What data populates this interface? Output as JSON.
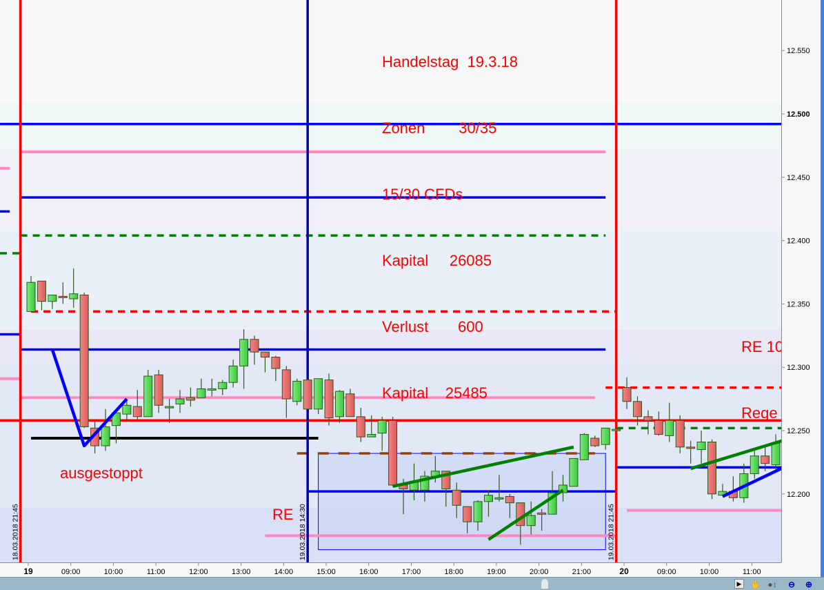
{
  "chart_data": {
    "type": "candlestick",
    "y_axis": {
      "ticks": [
        12550,
        12500,
        12450,
        12400,
        12350,
        12300,
        12250,
        12200
      ],
      "tick_labels": [
        "12.550",
        "12.500",
        "12.450",
        "12.400",
        "12.350",
        "12.300",
        "12.250",
        "12.200"
      ],
      "bold_tick": "12.500"
    },
    "x_axis": {
      "ticks": [
        {
          "t": "19 08:00",
          "label": "19",
          "bold": true
        },
        {
          "t": "19 09:00",
          "label": "09:00"
        },
        {
          "t": "19 10:00",
          "label": "10:00"
        },
        {
          "t": "19 11:00",
          "label": "11:00"
        },
        {
          "t": "19 12:00",
          "label": "12:00"
        },
        {
          "t": "19 13:00",
          "label": "13:00"
        },
        {
          "t": "19 14:00",
          "label": "14:00"
        },
        {
          "t": "19 15:00",
          "label": "15:00"
        },
        {
          "t": "19 16:00",
          "label": "16:00"
        },
        {
          "t": "19 17:00",
          "label": "17:00"
        },
        {
          "t": "19 18:00",
          "label": "18:00"
        },
        {
          "t": "19 19:00",
          "label": "19:00"
        },
        {
          "t": "19 20:00",
          "label": "20:00"
        },
        {
          "t": "19 21:00",
          "label": "21:00"
        },
        {
          "t": "20 08:00",
          "label": "20",
          "bold": true
        },
        {
          "t": "20 09:00",
          "label": "09:00"
        },
        {
          "t": "20 10:00",
          "label": "10:00"
        },
        {
          "t": "20 11:00",
          "label": "11:00"
        }
      ]
    },
    "colors": {
      "up": "#55dd55",
      "down": "#e86868",
      "outline": "#2b5a1c"
    },
    "candles": [
      {
        "t": "19 08:00",
        "o": 12344,
        "h": 12372,
        "l": 12344,
        "c": 12367
      },
      {
        "t": "19 08:15",
        "o": 12368,
        "h": 12368,
        "l": 12345,
        "c": 12352
      },
      {
        "t": "19 08:30",
        "o": 12352,
        "h": 12357,
        "l": 12346,
        "c": 12357
      },
      {
        "t": "19 08:45",
        "o": 12356,
        "h": 12367,
        "l": 12350,
        "c": 12355
      },
      {
        "t": "19 09:00",
        "o": 12354,
        "h": 12378,
        "l": 12347,
        "c": 12358
      },
      {
        "t": "19 09:15",
        "o": 12357,
        "h": 12359,
        "l": 12252,
        "c": 12253
      },
      {
        "t": "19 09:30",
        "o": 12252,
        "h": 12258,
        "l": 12232,
        "c": 12238
      },
      {
        "t": "19 09:45",
        "o": 12238,
        "h": 12267,
        "l": 12234,
        "c": 12253
      },
      {
        "t": "19 10:00",
        "o": 12254,
        "h": 12264,
        "l": 12240,
        "c": 12264
      },
      {
        "t": "19 10:15",
        "o": 12263,
        "h": 12275,
        "l": 12257,
        "c": 12270
      },
      {
        "t": "19 10:30",
        "o": 12269,
        "h": 12282,
        "l": 12259,
        "c": 12261
      },
      {
        "t": "19 10:45",
        "o": 12261,
        "h": 12298,
        "l": 12261,
        "c": 12293
      },
      {
        "t": "19 11:00",
        "o": 12294,
        "h": 12298,
        "l": 12264,
        "c": 12270
      },
      {
        "t": "19 11:15",
        "o": 12269,
        "h": 12275,
        "l": 12256,
        "c": 12269
      },
      {
        "t": "19 11:30",
        "o": 12271,
        "h": 12282,
        "l": 12264,
        "c": 12275
      },
      {
        "t": "19 11:45",
        "o": 12276,
        "h": 12284,
        "l": 12269,
        "c": 12274
      },
      {
        "t": "19 12:00",
        "o": 12276,
        "h": 12291,
        "l": 12276,
        "c": 12283
      },
      {
        "t": "19 12:15",
        "o": 12283,
        "h": 12291,
        "l": 12277,
        "c": 12283
      },
      {
        "t": "19 12:30",
        "o": 12283,
        "h": 12290,
        "l": 12278,
        "c": 12288
      },
      {
        "t": "19 12:45",
        "o": 12288,
        "h": 12306,
        "l": 12284,
        "c": 12301
      },
      {
        "t": "19 13:00",
        "o": 12301,
        "h": 12330,
        "l": 12283,
        "c": 12322
      },
      {
        "t": "19 13:15",
        "o": 12322,
        "h": 12325,
        "l": 12302,
        "c": 12312
      },
      {
        "t": "19 13:30",
        "o": 12312,
        "h": 12312,
        "l": 12296,
        "c": 12308
      },
      {
        "t": "19 13:45",
        "o": 12308,
        "h": 12309,
        "l": 12289,
        "c": 12299
      },
      {
        "t": "19 14:00",
        "o": 12298,
        "h": 12301,
        "l": 12260,
        "c": 12275
      },
      {
        "t": "19 14:15",
        "o": 12273,
        "h": 12291,
        "l": 12270,
        "c": 12289
      },
      {
        "t": "19 14:30",
        "o": 12290,
        "h": 12291,
        "l": 12267,
        "c": 12267
      },
      {
        "t": "19 14:45",
        "o": 12267,
        "h": 12291,
        "l": 12263,
        "c": 12291
      },
      {
        "t": "19 15:00",
        "o": 12290,
        "h": 12295,
        "l": 12254,
        "c": 12260
      },
      {
        "t": "19 15:15",
        "o": 12261,
        "h": 12282,
        "l": 12256,
        "c": 12281
      },
      {
        "t": "19 15:30",
        "o": 12279,
        "h": 12283,
        "l": 12261,
        "c": 12261
      },
      {
        "t": "19 15:45",
        "o": 12261,
        "h": 12268,
        "l": 12241,
        "c": 12245
      },
      {
        "t": "19 16:00",
        "o": 12245,
        "h": 12262,
        "l": 12245,
        "c": 12247
      },
      {
        "t": "19 16:15",
        "o": 12248,
        "h": 12261,
        "l": 12234,
        "c": 12258
      },
      {
        "t": "19 16:30",
        "o": 12258,
        "h": 12261,
        "l": 12206,
        "c": 12207
      },
      {
        "t": "19 16:45",
        "o": 12207,
        "h": 12212,
        "l": 12184,
        "c": 12204
      },
      {
        "t": "19 17:00",
        "o": 12203,
        "h": 12224,
        "l": 12195,
        "c": 12210
      },
      {
        "t": "19 17:15",
        "o": 12203,
        "h": 12218,
        "l": 12194,
        "c": 12214
      },
      {
        "t": "19 17:30",
        "o": 12214,
        "h": 12230,
        "l": 12209,
        "c": 12218
      },
      {
        "t": "19 17:45",
        "o": 12218,
        "h": 12218,
        "l": 12190,
        "c": 12204
      },
      {
        "t": "19 18:00",
        "o": 12203,
        "h": 12209,
        "l": 12181,
        "c": 12191
      },
      {
        "t": "19 18:15",
        "o": 12190,
        "h": 12190,
        "l": 12169,
        "c": 12178
      },
      {
        "t": "19 18:30",
        "o": 12178,
        "h": 12195,
        "l": 12171,
        "c": 12194
      },
      {
        "t": "19 18:45",
        "o": 12194,
        "h": 12203,
        "l": 12182,
        "c": 12199
      },
      {
        "t": "19 19:00",
        "o": 12197,
        "h": 12215,
        "l": 12194,
        "c": 12197
      },
      {
        "t": "19 19:15",
        "o": 12198,
        "h": 12200,
        "l": 12181,
        "c": 12193
      },
      {
        "t": "19 19:30",
        "o": 12193,
        "h": 12193,
        "l": 12160,
        "c": 12175
      },
      {
        "t": "19 19:45",
        "o": 12175,
        "h": 12194,
        "l": 12168,
        "c": 12183
      },
      {
        "t": "19 20:00",
        "o": 12185,
        "h": 12188,
        "l": 12171,
        "c": 12184
      },
      {
        "t": "19 20:15",
        "o": 12184,
        "h": 12218,
        "l": 12184,
        "c": 12201
      },
      {
        "t": "19 20:30",
        "o": 12201,
        "h": 12215,
        "l": 12194,
        "c": 12207
      },
      {
        "t": "19 20:45",
        "o": 12206,
        "h": 12228,
        "l": 12206,
        "c": 12228
      },
      {
        "t": "19 21:00",
        "o": 12227,
        "h": 12248,
        "l": 12227,
        "c": 12247
      },
      {
        "t": "19 21:15",
        "o": 12244,
        "h": 12246,
        "l": 12237,
        "c": 12238
      },
      {
        "t": "19 21:30",
        "o": 12239,
        "h": 12252,
        "l": 12235,
        "c": 12252
      },
      {
        "t": "19 21:45",
        "o": 12251,
        "h": 12252,
        "l": 12250,
        "c": 12251
      },
      {
        "t": "20 08:00",
        "o": 12284,
        "h": 12292,
        "l": 12267,
        "c": 12273
      },
      {
        "t": "20 08:15",
        "o": 12273,
        "h": 12277,
        "l": 12254,
        "c": 12261
      },
      {
        "t": "20 08:30",
        "o": 12261,
        "h": 12266,
        "l": 12247,
        "c": 12258
      },
      {
        "t": "20 08:45",
        "o": 12258,
        "h": 12265,
        "l": 12246,
        "c": 12247
      },
      {
        "t": "20 09:00",
        "o": 12246,
        "h": 12272,
        "l": 12241,
        "c": 12258
      },
      {
        "t": "20 09:15",
        "o": 12258,
        "h": 12262,
        "l": 12232,
        "c": 12237
      },
      {
        "t": "20 09:30",
        "o": 12237,
        "h": 12242,
        "l": 12224,
        "c": 12236
      },
      {
        "t": "20 09:45",
        "o": 12235,
        "h": 12250,
        "l": 12224,
        "c": 12241
      },
      {
        "t": "20 10:00",
        "o": 12241,
        "h": 12243,
        "l": 12196,
        "c": 12200
      },
      {
        "t": "20 10:15",
        "o": 12199,
        "h": 12208,
        "l": 12199,
        "c": 12202
      },
      {
        "t": "20 10:30",
        "o": 12202,
        "h": 12214,
        "l": 12194,
        "c": 12197
      },
      {
        "t": "20 10:45",
        "o": 12197,
        "h": 12224,
        "l": 12193,
        "c": 12216
      },
      {
        "t": "20 11:00",
        "o": 12216,
        "h": 12234,
        "l": 12212,
        "c": 12230
      },
      {
        "t": "20 11:15",
        "o": 12230,
        "h": 12237,
        "l": 12218,
        "c": 12224
      },
      {
        "t": "20 11:30",
        "o": 12223,
        "h": 12247,
        "l": 12218,
        "c": 12240
      }
    ],
    "horizontal_levels": [
      {
        "price": 12492,
        "color": "#0000ff",
        "style": "solid",
        "from": null,
        "to": null
      },
      {
        "price": 12470,
        "color": "#ff88c0",
        "style": "solid",
        "from": "18 21:45",
        "to": "19 21:30"
      },
      {
        "price": 12457,
        "color": "#ff88c0",
        "style": "solid",
        "from": null,
        "to": "18 21:30"
      },
      {
        "price": 12434,
        "color": "#0000ff",
        "style": "solid",
        "from": "18 21:45",
        "to": "19 21:30"
      },
      {
        "price": 12423,
        "color": "#0000ff",
        "style": "solid",
        "from": null,
        "to": "18 21:30"
      },
      {
        "price": 12404,
        "color": "#008000",
        "style": "dotted",
        "from": "18 21:45",
        "to": "19 21:30"
      },
      {
        "price": 12390,
        "color": "#008000",
        "style": "dotted",
        "from": null,
        "to": "18 21:45"
      },
      {
        "price": 12344,
        "color": "#ff0000",
        "style": "dotted",
        "from": "19 08:00",
        "to": "19 21:45"
      },
      {
        "price": 12326,
        "color": "#0000ff",
        "style": "solid",
        "from": null,
        "to": "18 21:45"
      },
      {
        "price": 12314,
        "color": "#0000ff",
        "style": "solid",
        "from": "18 21:45",
        "to": "19 21:30"
      },
      {
        "price": 12291,
        "color": "#ff88c0",
        "style": "solid",
        "from": null,
        "to": "18 21:45"
      },
      {
        "price": 12276,
        "color": "#ff88c0",
        "style": "solid",
        "from": "18 21:45",
        "to": "19 21:15"
      },
      {
        "price": 12258,
        "color": "#ff0000",
        "style": "solid",
        "from": null,
        "to": null
      },
      {
        "price": 12244,
        "color": "#000000",
        "style": "solid",
        "from": "19 08:00",
        "to": "19 14:45"
      },
      {
        "price": 12232,
        "color": "#8b4513",
        "style": "dashed",
        "from": "19 14:15",
        "to": "19 21:15"
      },
      {
        "price": 12202,
        "color": "#0000ff",
        "style": "solid",
        "from": "19 14:30",
        "to": "19 21:45"
      },
      {
        "price": 12221,
        "color": "#0000ff",
        "style": "solid",
        "from": "19 21:45",
        "to": null
      },
      {
        "price": 12167,
        "color": "#ff88c0",
        "style": "solid",
        "from": "19 13:30",
        "to": "19 21:45"
      },
      {
        "price": 12187,
        "color": "#ff88c0",
        "style": "solid",
        "from": "20 08:00",
        "to": null
      },
      {
        "price": 12284,
        "color": "#ff0000",
        "style": "dotted",
        "from": "19 21:30",
        "to": null
      },
      {
        "price": 12252,
        "color": "#008000",
        "style": "dotted",
        "from": "19 21:45",
        "to": null
      }
    ],
    "trendlines": [
      {
        "color": "#0000ff",
        "points": [
          [
            "19 08:30",
            12314
          ],
          [
            "19 09:15",
            12238
          ],
          [
            "19 10:15",
            12275
          ]
        ]
      },
      {
        "color": "#008000",
        "points": [
          [
            "19 16:30",
            12206
          ],
          [
            "19 20:45",
            12237
          ]
        ]
      },
      {
        "color": "#008000",
        "points": [
          [
            "19 18:45",
            12164
          ],
          [
            "19 20:30",
            12203
          ]
        ]
      },
      {
        "color": "#008000",
        "points": [
          [
            "20 09:30",
            12220
          ],
          [
            "20 11:45",
            12243
          ]
        ]
      },
      {
        "color": "#0000ff",
        "points": [
          [
            "20 10:15",
            12198
          ],
          [
            "20 11:45",
            12222
          ]
        ]
      }
    ],
    "rectangle": {
      "color": "#0000ff",
      "fill": "#c8d4f4",
      "from": "19 14:45",
      "to": "19 21:30",
      "top": 12232,
      "bottom": 12156
    },
    "vertical_lines": [
      {
        "t": "18 21:45",
        "color": "#ff0000",
        "label": "18.03.2018 21:45"
      },
      {
        "t": "19 14:30",
        "color": "#0000aa",
        "label": "19.03.2018 14:30"
      },
      {
        "t": "19 21:45",
        "color": "#ff0000",
        "label": "19.03.2018 21:45"
      }
    ]
  },
  "annotations": {
    "info": [
      "Handelstag  19.3.18",
      "Zonen        30/35",
      "15/30 CFDs",
      "Kapital     26085",
      "Verlust       600",
      "Kapital    25485"
    ],
    "stopped": "ausgestoppt",
    "re": "RE",
    "re_right": [
      "RE 10",
      "Rege"
    ],
    "color": "#ff0000"
  },
  "toolbar": {
    "icons": [
      "cursor-icon",
      "hand-icon",
      "zoom-vertical-icon",
      "zoom-out-icon",
      "zoom-in-icon"
    ]
  }
}
